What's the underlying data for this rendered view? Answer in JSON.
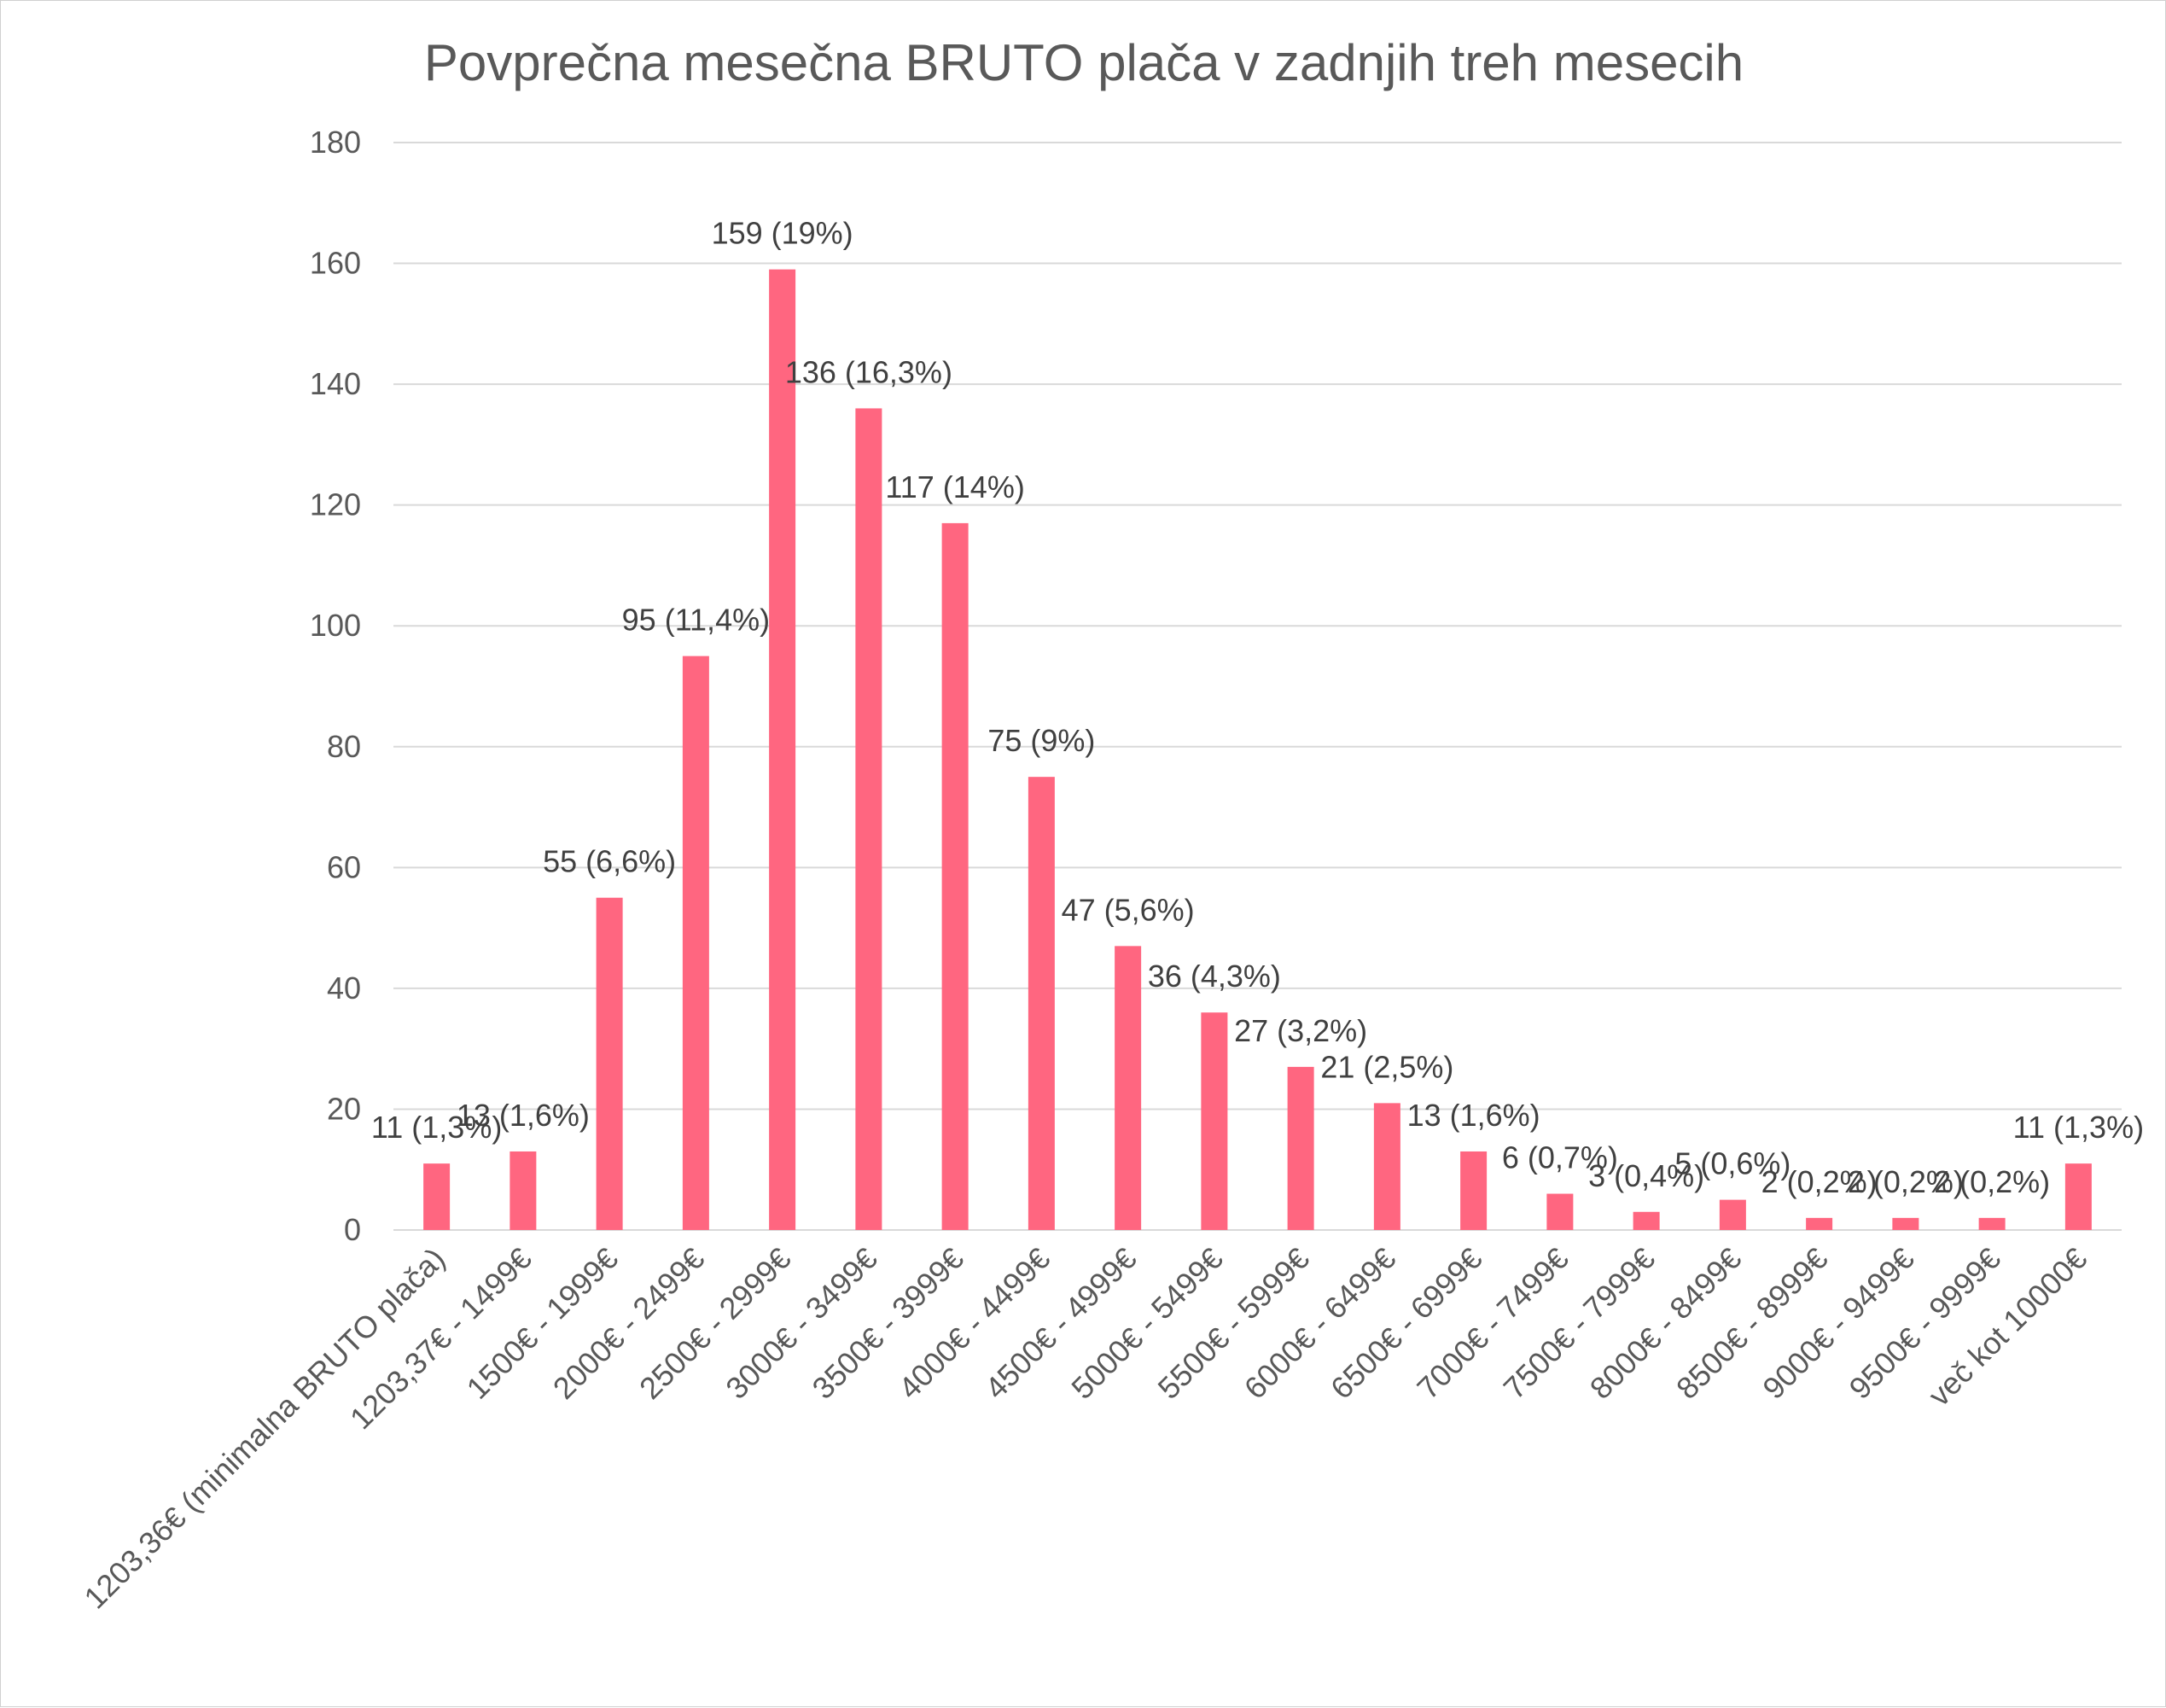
{
  "chart_data": {
    "type": "bar",
    "title": "Povprečna mesečna BRUTO plača v zadnjih treh mesecih",
    "xlabel": "",
    "ylabel": "",
    "ylim": [
      0,
      180
    ],
    "yticks": [
      0,
      20,
      40,
      60,
      80,
      100,
      120,
      140,
      160,
      180
    ],
    "grid": true,
    "legend": "none",
    "bar_color": "#FF6680",
    "categories": [
      "1203,36€ (minimalna BRUTO plača)",
      "1203,37€ - 1499€",
      "1500€ - 1999€",
      "2000€ - 2499€",
      "2500€ - 2999€",
      "3000€ - 3499€",
      "3500€ - 3999€",
      "4000€ - 4499€",
      "4500€ - 4999€",
      "5000€ - 5499€",
      "5500€ - 5999€",
      "6000€ - 6499€",
      "6500€ - 6999€",
      "7000€ - 7499€",
      "7500€ - 7999€",
      "8000€ - 8499€",
      "8500€ - 8999€",
      "9000€ - 9499€",
      "9500€ - 9999€",
      "več kot 10000€"
    ],
    "values": [
      11,
      13,
      55,
      95,
      159,
      136,
      117,
      75,
      47,
      36,
      27,
      21,
      13,
      6,
      3,
      5,
      2,
      2,
      2,
      11
    ],
    "data_labels": [
      "11 (1,3%)",
      "13 (1,6%)",
      "55 (6,6%)",
      "95 (11,4%)",
      "159 (19%)",
      "136 (16,3%)",
      "117 (14%)",
      "75 (9%)",
      "47 (5,6%)",
      "36 (4,3%)",
      "27 (3,2%)",
      "21 (2,5%)",
      "13 (1,6%)",
      "6 (0,7%)",
      "3 (0,4%)",
      "5 (0,6%)",
      "2 (0,2%)",
      "2 (0,2%)",
      "2 (0,2%)",
      "11 (1,3%)"
    ]
  }
}
